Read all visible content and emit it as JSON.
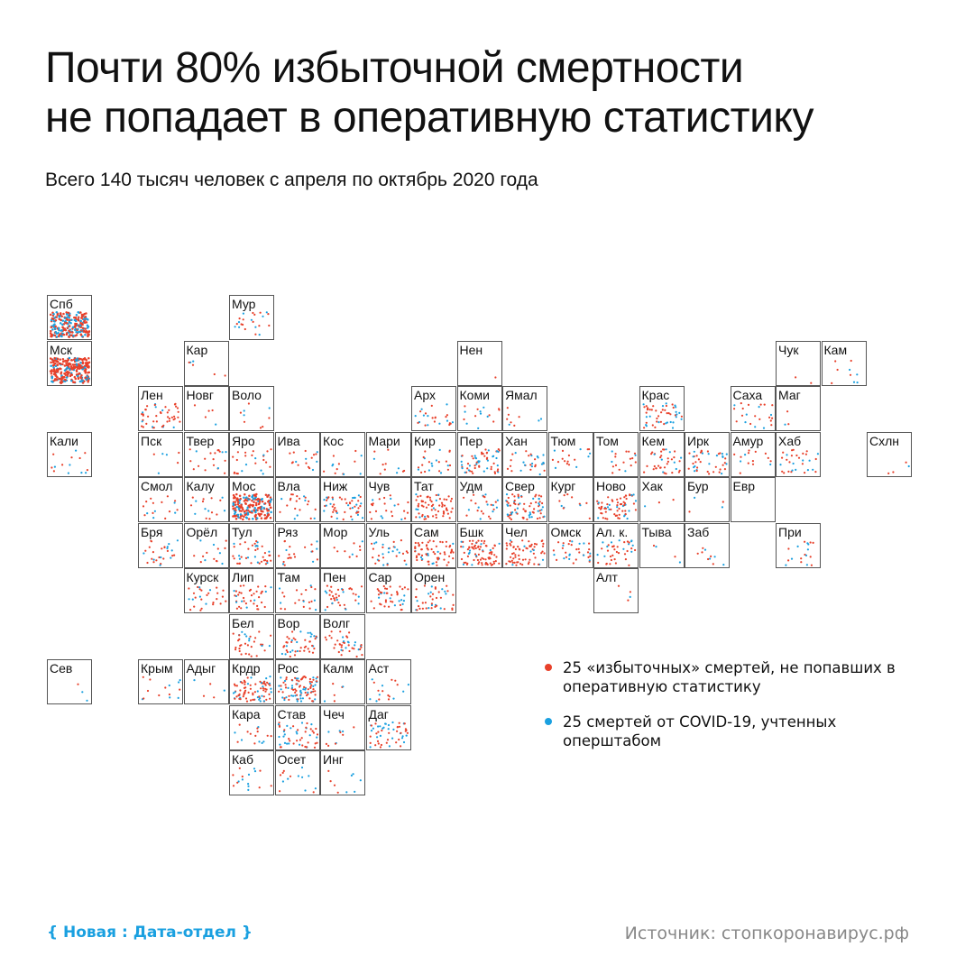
{
  "title": {
    "line1": "Почти 80% избыточной смертности",
    "line2": "не попадает в оперативную статистику"
  },
  "subtitle": "Всего 140 тысяч человек с апреля по октябрь 2020 года",
  "legend": {
    "excess": "25 «избыточных» смертей, не попавших в оперативную статистику",
    "covid": "25 смертей от COVID-19, учтенных оперштабом"
  },
  "footer": {
    "brand": "{ Новая : Дата-отдел }",
    "source": "Источник: стопкоронавирус.рф"
  },
  "colors": {
    "excess": "#e8402a",
    "covid": "#1aa0e0",
    "border": "#555555"
  },
  "chart_data": {
    "type": "tile-map",
    "unit_per_dot": 25,
    "series": [
      {
        "key": "excess",
        "legend": "25 «избыточных» смертей, не попавших в оперативную статистику"
      },
      {
        "key": "covid",
        "legend": "25 смертей от COVID-19, учтенных оперштабом"
      }
    ],
    "regions": [
      {
        "label": "Спб",
        "col": 0,
        "row": 0,
        "excess": 140,
        "covid": 90
      },
      {
        "label": "Мур",
        "col": 4,
        "row": 0,
        "excess": 14,
        "covid": 9
      },
      {
        "label": "Мск",
        "col": 0,
        "row": 1,
        "excess": 210,
        "covid": 60
      },
      {
        "label": "Кар",
        "col": 3,
        "row": 1,
        "excess": 4,
        "covid": 2
      },
      {
        "label": "Нен",
        "col": 9,
        "row": 1,
        "excess": 1,
        "covid": 0
      },
      {
        "label": "Чук",
        "col": 16,
        "row": 1,
        "excess": 2,
        "covid": 0
      },
      {
        "label": "Кам",
        "col": 17,
        "row": 1,
        "excess": 5,
        "covid": 4
      },
      {
        "label": "Лен",
        "col": 2,
        "row": 2,
        "excess": 40,
        "covid": 8
      },
      {
        "label": "Новг",
        "col": 3,
        "row": 2,
        "excess": 4,
        "covid": 1
      },
      {
        "label": "Воло",
        "col": 4,
        "row": 2,
        "excess": 6,
        "covid": 3
      },
      {
        "label": "Арх",
        "col": 8,
        "row": 2,
        "excess": 14,
        "covid": 10
      },
      {
        "label": "Коми",
        "col": 9,
        "row": 2,
        "excess": 8,
        "covid": 7
      },
      {
        "label": "Ямал",
        "col": 10,
        "row": 2,
        "excess": 6,
        "covid": 3
      },
      {
        "label": "Крас",
        "col": 13,
        "row": 2,
        "excess": 30,
        "covid": 20
      },
      {
        "label": "Саха",
        "col": 15,
        "row": 2,
        "excess": 16,
        "covid": 7
      },
      {
        "label": "Маг",
        "col": 16,
        "row": 2,
        "excess": 2,
        "covid": 1
      },
      {
        "label": "Кали",
        "col": 0,
        "row": 3,
        "excess": 8,
        "covid": 6
      },
      {
        "label": "Пск",
        "col": 2,
        "row": 3,
        "excess": 3,
        "covid": 3
      },
      {
        "label": "Твер",
        "col": 3,
        "row": 3,
        "excess": 16,
        "covid": 4
      },
      {
        "label": "Яро",
        "col": 4,
        "row": 3,
        "excess": 18,
        "covid": 6
      },
      {
        "label": "Ива",
        "col": 5,
        "row": 3,
        "excess": 12,
        "covid": 5
      },
      {
        "label": "Кос",
        "col": 6,
        "row": 3,
        "excess": 8,
        "covid": 5
      },
      {
        "label": "Мари",
        "col": 7,
        "row": 3,
        "excess": 8,
        "covid": 3
      },
      {
        "label": "Кир",
        "col": 8,
        "row": 3,
        "excess": 14,
        "covid": 9
      },
      {
        "label": "Пер",
        "col": 9,
        "row": 3,
        "excess": 35,
        "covid": 25
      },
      {
        "label": "Хан",
        "col": 10,
        "row": 3,
        "excess": 16,
        "covid": 14
      },
      {
        "label": "Тюм",
        "col": 11,
        "row": 3,
        "excess": 12,
        "covid": 6
      },
      {
        "label": "Том",
        "col": 12,
        "row": 3,
        "excess": 14,
        "covid": 4
      },
      {
        "label": "Кем",
        "col": 13,
        "row": 3,
        "excess": 30,
        "covid": 8
      },
      {
        "label": "Ирк",
        "col": 14,
        "row": 3,
        "excess": 26,
        "covid": 16
      },
      {
        "label": "Амур",
        "col": 15,
        "row": 3,
        "excess": 12,
        "covid": 3
      },
      {
        "label": "Хаб",
        "col": 16,
        "row": 3,
        "excess": 20,
        "covid": 10
      },
      {
        "label": "Схлн",
        "col": 18,
        "row": 3,
        "excess": 3,
        "covid": 1
      },
      {
        "label": "Смол",
        "col": 2,
        "row": 4,
        "excess": 12,
        "covid": 5
      },
      {
        "label": "Калу",
        "col": 3,
        "row": 4,
        "excess": 10,
        "covid": 6
      },
      {
        "label": "Мос",
        "col": 4,
        "row": 4,
        "excess": 140,
        "covid": 55
      },
      {
        "label": "Вла",
        "col": 5,
        "row": 4,
        "excess": 16,
        "covid": 6
      },
      {
        "label": "Ниж",
        "col": 6,
        "row": 4,
        "excess": 32,
        "covid": 20
      },
      {
        "label": "Чув",
        "col": 7,
        "row": 4,
        "excess": 18,
        "covid": 6
      },
      {
        "label": "Тат",
        "col": 8,
        "row": 4,
        "excess": 60,
        "covid": 8
      },
      {
        "label": "Удм",
        "col": 9,
        "row": 4,
        "excess": 16,
        "covid": 10
      },
      {
        "label": "Свер",
        "col": 10,
        "row": 4,
        "excess": 50,
        "covid": 28
      },
      {
        "label": "Кург",
        "col": 11,
        "row": 4,
        "excess": 8,
        "covid": 3
      },
      {
        "label": "Ново",
        "col": 12,
        "row": 4,
        "excess": 50,
        "covid": 18
      },
      {
        "label": "Хак",
        "col": 13,
        "row": 4,
        "excess": 2,
        "covid": 1
      },
      {
        "label": "Бур",
        "col": 14,
        "row": 4,
        "excess": 2,
        "covid": 2
      },
      {
        "label": "Евр",
        "col": 15,
        "row": 4,
        "excess": 0,
        "covid": 0
      },
      {
        "label": "Бря",
        "col": 2,
        "row": 5,
        "excess": 18,
        "covid": 10
      },
      {
        "label": "Орёл",
        "col": 3,
        "row": 5,
        "excess": 10,
        "covid": 5
      },
      {
        "label": "Тул",
        "col": 4,
        "row": 5,
        "excess": 30,
        "covid": 12
      },
      {
        "label": "Ряз",
        "col": 5,
        "row": 5,
        "excess": 16,
        "covid": 6
      },
      {
        "label": "Мор",
        "col": 6,
        "row": 5,
        "excess": 8,
        "covid": 2
      },
      {
        "label": "Уль",
        "col": 7,
        "row": 5,
        "excess": 18,
        "covid": 14
      },
      {
        "label": "Сам",
        "col": 8,
        "row": 5,
        "excess": 60,
        "covid": 10
      },
      {
        "label": "Бшк",
        "col": 9,
        "row": 5,
        "excess": 70,
        "covid": 14
      },
      {
        "label": "Чел",
        "col": 10,
        "row": 5,
        "excess": 60,
        "covid": 8
      },
      {
        "label": "Омск",
        "col": 11,
        "row": 5,
        "excess": 22,
        "covid": 12
      },
      {
        "label": "Ал. к.",
        "col": 12,
        "row": 5,
        "excess": 28,
        "covid": 12
      },
      {
        "label": "Тыва",
        "col": 13,
        "row": 5,
        "excess": 2,
        "covid": 2
      },
      {
        "label": "Заб",
        "col": 14,
        "row": 5,
        "excess": 6,
        "covid": 4
      },
      {
        "label": "При",
        "col": 16,
        "row": 5,
        "excess": 10,
        "covid": 8
      },
      {
        "label": "Курск",
        "col": 3,
        "row": 6,
        "excess": 22,
        "covid": 6
      },
      {
        "label": "Лип",
        "col": 4,
        "row": 6,
        "excess": 32,
        "covid": 8
      },
      {
        "label": "Там",
        "col": 5,
        "row": 6,
        "excess": 16,
        "covid": 6
      },
      {
        "label": "Пен",
        "col": 6,
        "row": 6,
        "excess": 28,
        "covid": 10
      },
      {
        "label": "Сар",
        "col": 7,
        "row": 6,
        "excess": 32,
        "covid": 10
      },
      {
        "label": "Орен",
        "col": 8,
        "row": 6,
        "excess": 30,
        "covid": 12
      },
      {
        "label": "Алт",
        "col": 12,
        "row": 6,
        "excess": 3,
        "covid": 1
      },
      {
        "label": "Бел",
        "col": 4,
        "row": 7,
        "excess": 26,
        "covid": 8
      },
      {
        "label": "Вор",
        "col": 5,
        "row": 7,
        "excess": 30,
        "covid": 16
      },
      {
        "label": "Волг",
        "col": 6,
        "row": 7,
        "excess": 30,
        "covid": 10
      },
      {
        "label": "Сев",
        "col": 0,
        "row": 8,
        "excess": 1,
        "covid": 2
      },
      {
        "label": "Крым",
        "col": 2,
        "row": 8,
        "excess": 8,
        "covid": 6
      },
      {
        "label": "Адыг",
        "col": 3,
        "row": 8,
        "excess": 3,
        "covid": 2
      },
      {
        "label": "Крдр",
        "col": 4,
        "row": 8,
        "excess": 60,
        "covid": 24
      },
      {
        "label": "Рос",
        "col": 5,
        "row": 8,
        "excess": 55,
        "covid": 40
      },
      {
        "label": "Калм",
        "col": 6,
        "row": 8,
        "excess": 4,
        "covid": 2
      },
      {
        "label": "Аст",
        "col": 7,
        "row": 8,
        "excess": 10,
        "covid": 8
      },
      {
        "label": "Кара",
        "col": 4,
        "row": 9,
        "excess": 10,
        "covid": 6
      },
      {
        "label": "Став",
        "col": 5,
        "row": 9,
        "excess": 30,
        "covid": 20
      },
      {
        "label": "Чеч",
        "col": 6,
        "row": 9,
        "excess": 6,
        "covid": 4
      },
      {
        "label": "Даг",
        "col": 7,
        "row": 9,
        "excess": 30,
        "covid": 24
      },
      {
        "label": "Каб",
        "col": 4,
        "row": 10,
        "excess": 8,
        "covid": 8
      },
      {
        "label": "Осет",
        "col": 5,
        "row": 10,
        "excess": 6,
        "covid": 8
      },
      {
        "label": "Инг",
        "col": 6,
        "row": 10,
        "excess": 4,
        "covid": 5
      }
    ]
  }
}
